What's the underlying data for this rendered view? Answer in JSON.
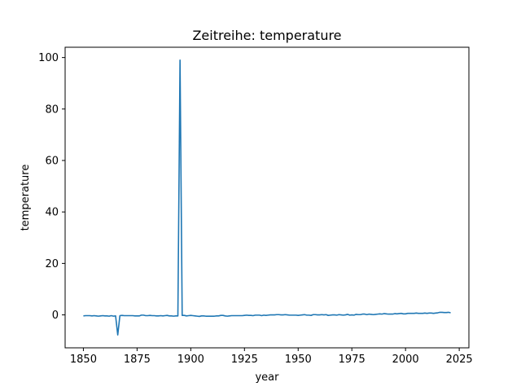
{
  "chart_data": {
    "type": "line",
    "title": "Zeitreihe: temperature",
    "xlabel": "year",
    "ylabel": "temperature",
    "xlim": [
      1841.5,
      2029.5
    ],
    "ylim": [
      -12.8,
      104.0
    ],
    "x_ticks": [
      1850,
      1875,
      1900,
      1925,
      1950,
      1975,
      2000,
      2025
    ],
    "y_ticks": [
      0,
      20,
      40,
      60,
      80,
      100
    ],
    "grid": false,
    "line_color": "#1f77b4",
    "series": [
      {
        "x": [
          1850,
          1851,
          1852,
          1853,
          1854,
          1855,
          1856,
          1857,
          1858,
          1859,
          1860,
          1861,
          1862,
          1863,
          1864,
          1865,
          1866,
          1867,
          1868,
          1869,
          1870,
          1871,
          1872,
          1873,
          1874,
          1875,
          1876,
          1877,
          1878,
          1879,
          1880,
          1881,
          1882,
          1883,
          1884,
          1885,
          1886,
          1887,
          1888,
          1889,
          1890,
          1891,
          1892,
          1893,
          1894,
          1895,
          1896,
          1897,
          1898,
          1899,
          1900,
          1901,
          1902,
          1903,
          1904,
          1905,
          1906,
          1907,
          1908,
          1909,
          1910,
          1911,
          1912,
          1913,
          1914,
          1915,
          1916,
          1917,
          1918,
          1919,
          1920,
          1921,
          1922,
          1923,
          1924,
          1925,
          1926,
          1927,
          1928,
          1929,
          1930,
          1931,
          1932,
          1933,
          1934,
          1935,
          1936,
          1937,
          1938,
          1939,
          1940,
          1941,
          1942,
          1943,
          1944,
          1945,
          1946,
          1947,
          1948,
          1949,
          1950,
          1951,
          1952,
          1953,
          1954,
          1955,
          1956,
          1957,
          1958,
          1959,
          1960,
          1961,
          1962,
          1963,
          1964,
          1965,
          1966,
          1967,
          1968,
          1969,
          1970,
          1971,
          1972,
          1973,
          1974,
          1975,
          1976,
          1977,
          1978,
          1979,
          1980,
          1981,
          1982,
          1983,
          1984,
          1985,
          1986,
          1987,
          1988,
          1989,
          1990,
          1991,
          1992,
          1993,
          1994,
          1995,
          1996,
          1997,
          1998,
          1999,
          2000,
          2001,
          2002,
          2003,
          2004,
          2005,
          2006,
          2007,
          2008,
          2009,
          2010,
          2011,
          2012,
          2013,
          2014,
          2015,
          2016,
          2017,
          2018,
          2019,
          2020,
          2021
        ],
        "y": [
          -0.4,
          -0.3,
          -0.3,
          -0.3,
          -0.4,
          -0.3,
          -0.4,
          -0.5,
          -0.4,
          -0.3,
          -0.4,
          -0.4,
          -0.5,
          -0.3,
          -0.5,
          -0.4,
          -7.8,
          -0.3,
          -0.2,
          -0.3,
          -0.3,
          -0.3,
          -0.3,
          -0.3,
          -0.4,
          -0.4,
          -0.4,
          -0.1,
          -0.1,
          -0.3,
          -0.3,
          -0.2,
          -0.3,
          -0.3,
          -0.4,
          -0.4,
          -0.3,
          -0.4,
          -0.3,
          -0.2,
          -0.4,
          -0.4,
          -0.5,
          -0.4,
          -0.4,
          99.0,
          -0.2,
          -0.2,
          -0.4,
          -0.3,
          -0.2,
          -0.3,
          -0.4,
          -0.5,
          -0.6,
          -0.4,
          -0.4,
          -0.5,
          -0.5,
          -0.5,
          -0.5,
          -0.5,
          -0.4,
          -0.4,
          -0.2,
          -0.2,
          -0.4,
          -0.5,
          -0.4,
          -0.3,
          -0.3,
          -0.3,
          -0.3,
          -0.3,
          -0.3,
          -0.2,
          -0.1,
          -0.2,
          -0.2,
          -0.3,
          -0.1,
          -0.1,
          -0.1,
          -0.3,
          -0.1,
          -0.2,
          -0.1,
          0.0,
          0.0,
          0.0,
          0.1,
          0.1,
          0.0,
          0.0,
          0.1,
          0.0,
          -0.1,
          -0.1,
          -0.1,
          -0.1,
          -0.2,
          -0.1,
          0.0,
          0.1,
          -0.1,
          -0.1,
          -0.2,
          0.1,
          0.1,
          0.0,
          0.0,
          0.1,
          0.0,
          0.1,
          -0.2,
          -0.1,
          0.0,
          0.0,
          -0.1,
          0.1,
          0.0,
          -0.1,
          0.0,
          0.2,
          -0.1,
          0.0,
          -0.1,
          0.2,
          0.1,
          0.1,
          0.3,
          0.3,
          0.1,
          0.3,
          0.2,
          0.1,
          0.2,
          0.3,
          0.4,
          0.3,
          0.5,
          0.4,
          0.3,
          0.3,
          0.3,
          0.5,
          0.4,
          0.5,
          0.6,
          0.4,
          0.4,
          0.6,
          0.6,
          0.6,
          0.6,
          0.7,
          0.6,
          0.6,
          0.6,
          0.7,
          0.6,
          0.7,
          0.7,
          0.6,
          0.7,
          0.8,
          1.0,
          1.0,
          0.9,
          0.9,
          1.0,
          0.8
        ]
      }
    ]
  }
}
